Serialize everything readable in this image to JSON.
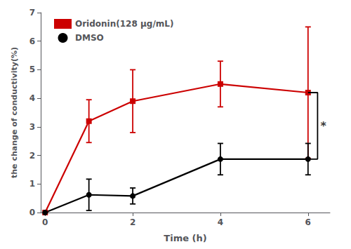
{
  "chart_data": {
    "type": "line",
    "xlabel": "Time (h)",
    "ylabel": "the change of conductivity(%)",
    "x": [
      0,
      1,
      2,
      4,
      6
    ],
    "series": [
      {
        "name": "Oridonin(128 μg/mL)",
        "color": "#cc0000",
        "marker": "square",
        "values": [
          0.0,
          3.2,
          3.9,
          4.5,
          4.2
        ],
        "yerr": [
          0.0,
          0.75,
          1.1,
          0.8,
          2.3
        ]
      },
      {
        "name": "DMSO",
        "color": "#000000",
        "marker": "circle",
        "values": [
          0.0,
          0.62,
          0.58,
          1.87,
          1.87
        ],
        "yerr": [
          0.0,
          0.55,
          0.28,
          0.55,
          0.55
        ]
      }
    ],
    "xlim": [
      -0.1,
      6.5
    ],
    "xticks": [
      0,
      2,
      4,
      6
    ],
    "ylim": [
      0,
      7
    ],
    "yticks": [
      0,
      1,
      2,
      3,
      4,
      5,
      6,
      7
    ],
    "grid": false,
    "legend": "upper left",
    "annotations": [
      {
        "text": "*",
        "x": 6
      }
    ]
  }
}
